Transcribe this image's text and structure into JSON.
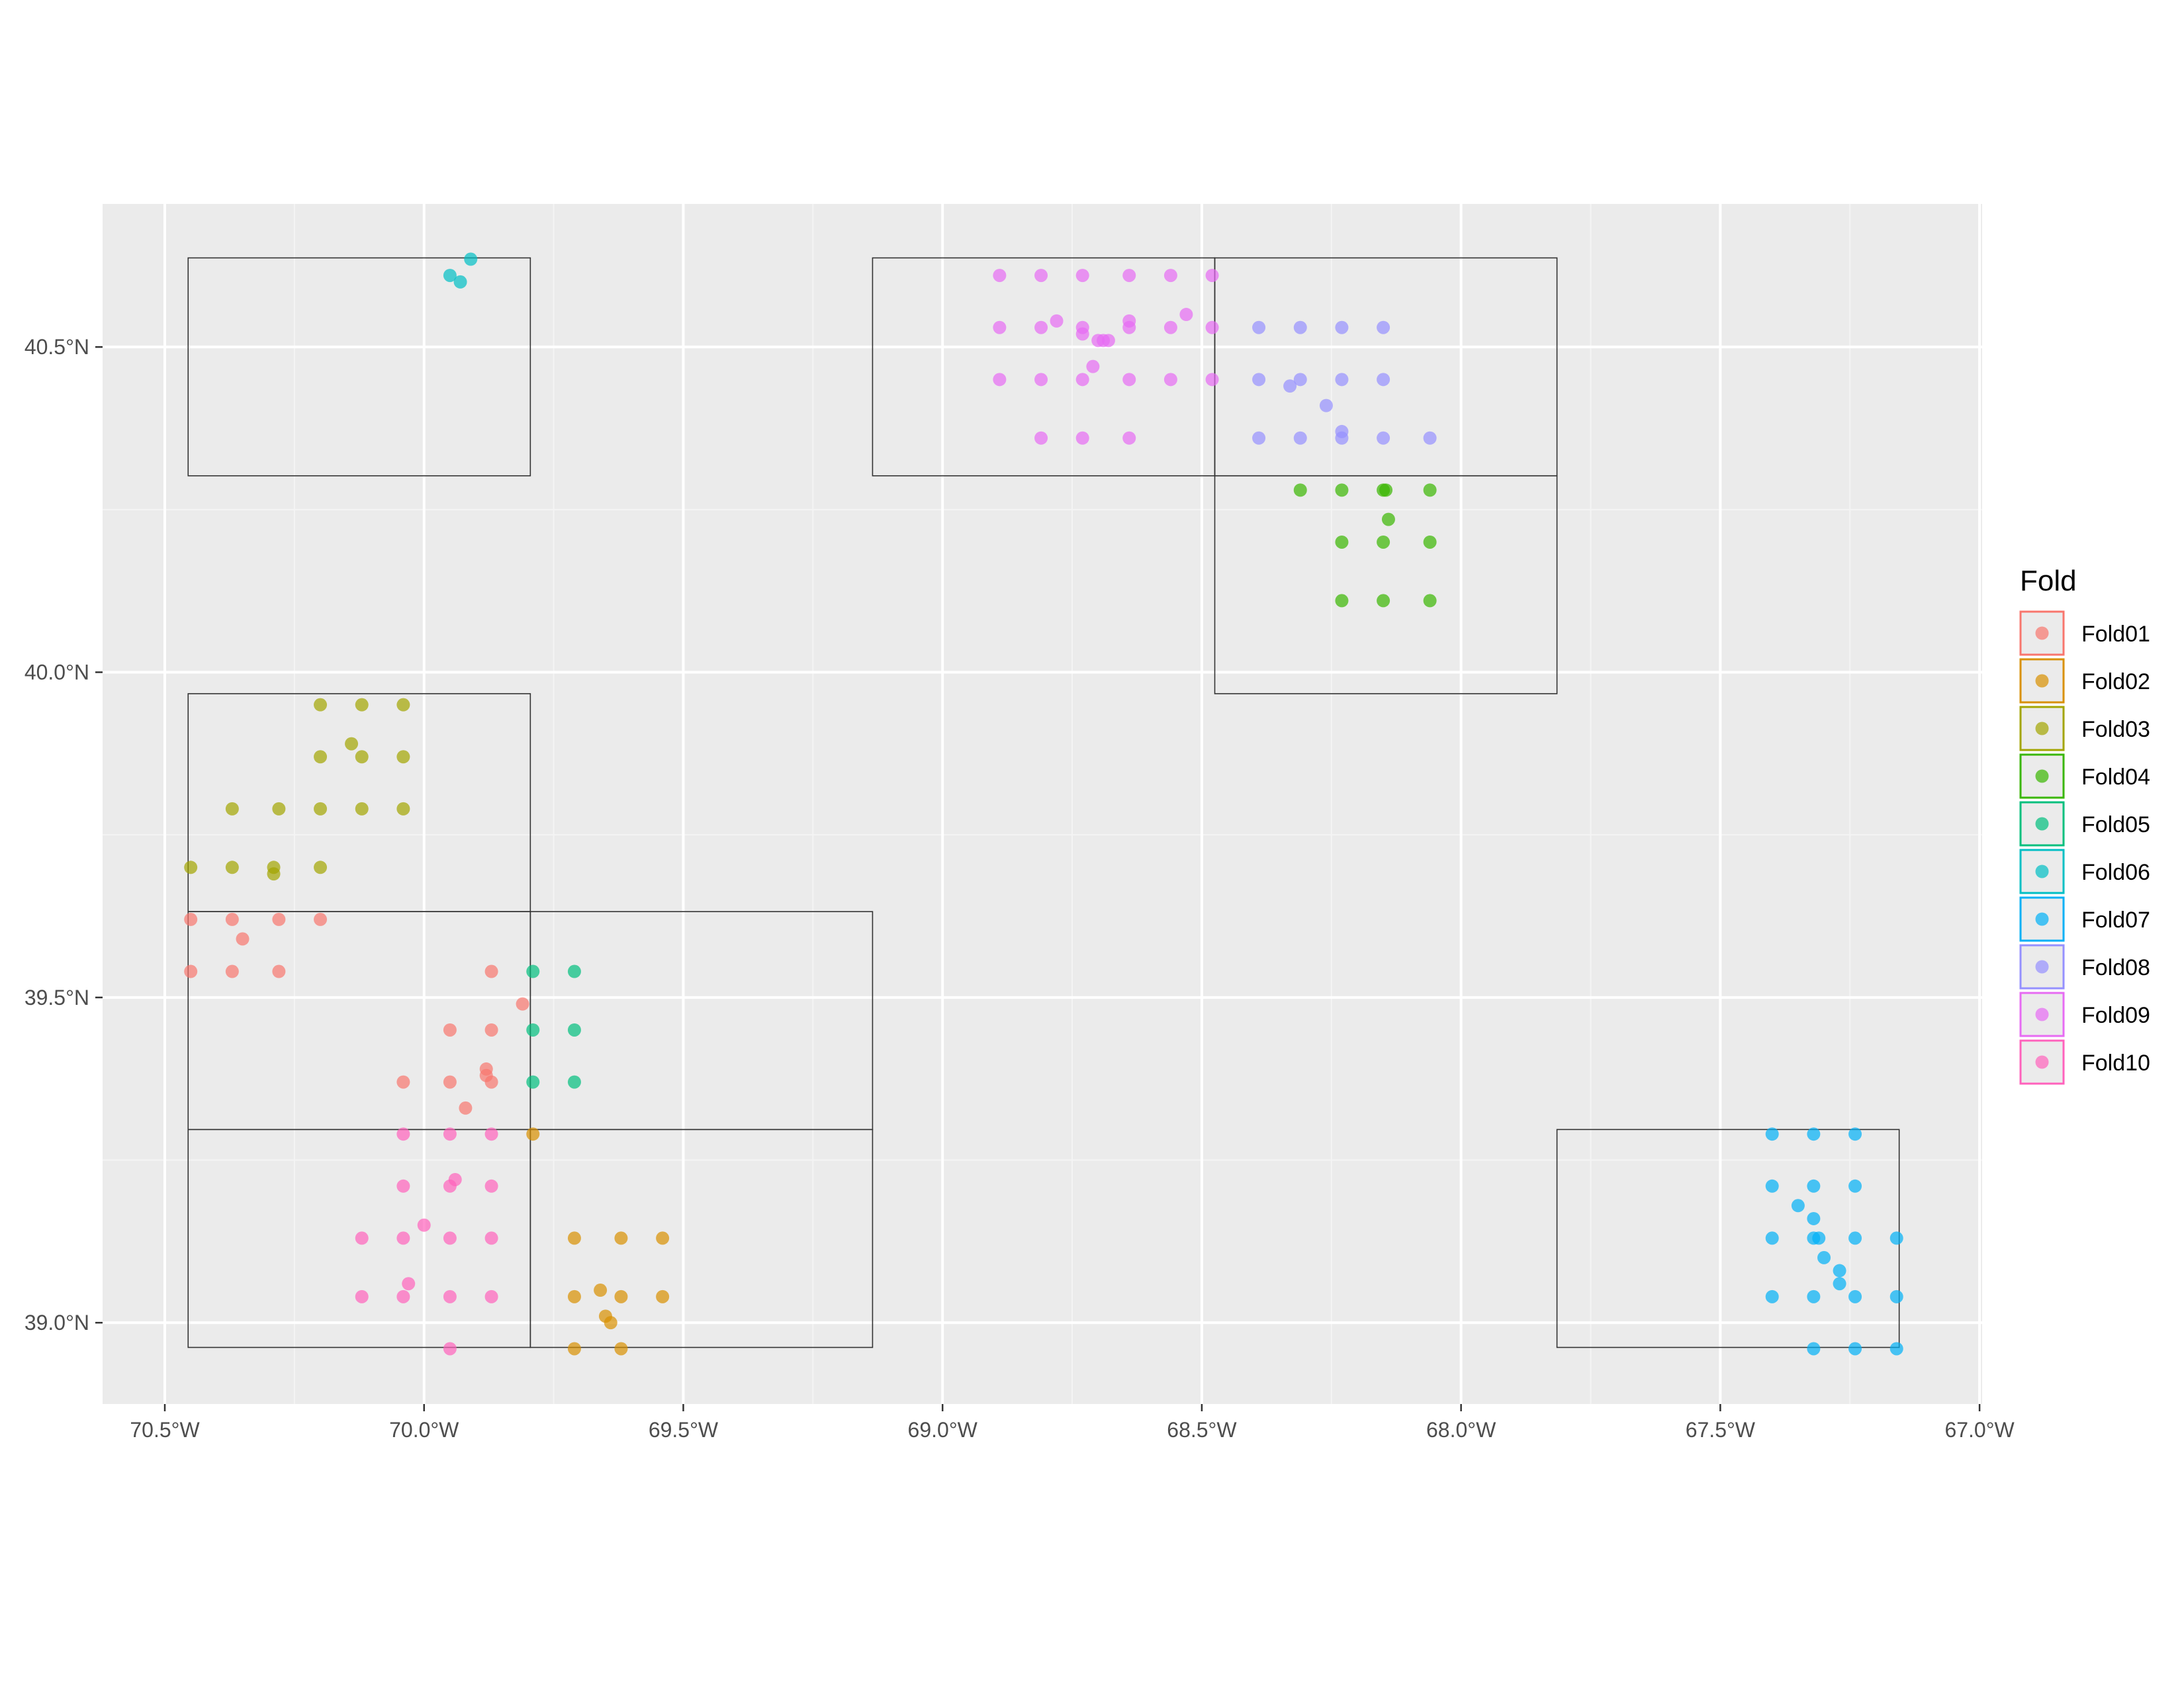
{
  "chart_data": {
    "type": "scatter",
    "title": "",
    "xlabel": "",
    "ylabel": "",
    "xlim": [
      -70.62,
      -66.995
    ],
    "ylim": [
      38.875,
      40.72
    ],
    "grid": true,
    "legend_position": "right",
    "legend_title": "Fold",
    "x_ticks": [
      {
        "value": -70.5,
        "label": "70.5°W"
      },
      {
        "value": -70.0,
        "label": "70.0°W"
      },
      {
        "value": -69.5,
        "label": "69.5°W"
      },
      {
        "value": -69.0,
        "label": "69.0°W"
      },
      {
        "value": -68.5,
        "label": "68.5°W"
      },
      {
        "value": -68.0,
        "label": "68.0°W"
      },
      {
        "value": -67.5,
        "label": "67.5°W"
      },
      {
        "value": -67.0,
        "label": "67.0°W"
      }
    ],
    "y_ticks": [
      {
        "value": 39.0,
        "label": "39.0°N"
      },
      {
        "value": 39.5,
        "label": "39.5°N"
      },
      {
        "value": 40.0,
        "label": "40.0°N"
      },
      {
        "value": 40.5,
        "label": "40.5°N"
      }
    ],
    "blocks": [
      {
        "xmin": -70.455,
        "xmax": -69.795,
        "ymin": 40.302,
        "ymax": 40.637
      },
      {
        "xmin": -70.455,
        "xmax": -69.795,
        "ymin": 39.632,
        "ymax": 39.967
      },
      {
        "xmin": -70.455,
        "xmax": -69.795,
        "ymin": 39.297,
        "ymax": 39.632
      },
      {
        "xmin": -70.455,
        "xmax": -69.795,
        "ymin": 38.962,
        "ymax": 39.297
      },
      {
        "xmin": -69.795,
        "xmax": -69.135,
        "ymin": 39.297,
        "ymax": 39.632
      },
      {
        "xmin": -69.795,
        "xmax": -69.135,
        "ymin": 38.962,
        "ymax": 39.297
      },
      {
        "xmin": -69.135,
        "xmax": -68.475,
        "ymin": 40.302,
        "ymax": 40.637
      },
      {
        "xmin": -68.475,
        "xmax": -67.815,
        "ymin": 40.302,
        "ymax": 40.637
      },
      {
        "xmin": -68.475,
        "xmax": -67.815,
        "ymin": 39.967,
        "ymax": 40.302
      },
      {
        "xmin": -67.815,
        "xmax": -67.155,
        "ymin": 38.962,
        "ymax": 39.297
      }
    ],
    "series": [
      {
        "name": "Fold01",
        "color": "#F8766D",
        "points": [
          [
            -70.45,
            39.62
          ],
          [
            -70.37,
            39.62
          ],
          [
            -70.28,
            39.62
          ],
          [
            -70.2,
            39.62
          ],
          [
            -70.35,
            39.59
          ],
          [
            -70.45,
            39.54
          ],
          [
            -70.37,
            39.54
          ],
          [
            -70.28,
            39.54
          ],
          [
            -69.87,
            39.54
          ],
          [
            -69.81,
            39.49
          ],
          [
            -69.95,
            39.45
          ],
          [
            -69.87,
            39.45
          ],
          [
            -70.04,
            39.37
          ],
          [
            -69.95,
            39.37
          ],
          [
            -69.88,
            39.39
          ],
          [
            -69.87,
            39.37
          ],
          [
            -69.88,
            39.38
          ],
          [
            -69.92,
            39.33
          ]
        ]
      },
      {
        "name": "Fold02",
        "color": "#D89000",
        "points": [
          [
            -69.79,
            39.29
          ],
          [
            -69.71,
            39.13
          ],
          [
            -69.62,
            39.13
          ],
          [
            -69.54,
            39.13
          ],
          [
            -69.71,
            39.04
          ],
          [
            -69.66,
            39.05
          ],
          [
            -69.62,
            39.04
          ],
          [
            -69.54,
            39.04
          ],
          [
            -69.65,
            39.01
          ],
          [
            -69.64,
            39.0
          ],
          [
            -69.71,
            38.96
          ],
          [
            -69.62,
            38.96
          ]
        ]
      },
      {
        "name": "Fold03",
        "color": "#A3A500",
        "points": [
          [
            -70.2,
            39.95
          ],
          [
            -70.12,
            39.95
          ],
          [
            -70.04,
            39.95
          ],
          [
            -70.14,
            39.89
          ],
          [
            -70.2,
            39.87
          ],
          [
            -70.12,
            39.87
          ],
          [
            -70.04,
            39.87
          ],
          [
            -70.37,
            39.79
          ],
          [
            -70.28,
            39.79
          ],
          [
            -70.2,
            39.79
          ],
          [
            -70.12,
            39.79
          ],
          [
            -70.04,
            39.79
          ],
          [
            -70.45,
            39.7
          ],
          [
            -70.37,
            39.7
          ],
          [
            -70.29,
            39.7
          ],
          [
            -70.29,
            39.69
          ],
          [
            -70.2,
            39.7
          ]
        ]
      },
      {
        "name": "Fold04",
        "color": "#39B600",
        "points": [
          [
            -68.31,
            40.28
          ],
          [
            -68.23,
            40.28
          ],
          [
            -68.15,
            40.28
          ],
          [
            -68.145,
            40.28
          ],
          [
            -68.06,
            40.28
          ],
          [
            -68.14,
            40.235
          ],
          [
            -68.23,
            40.2
          ],
          [
            -68.15,
            40.2
          ],
          [
            -68.06,
            40.2
          ],
          [
            -68.23,
            40.11
          ],
          [
            -68.15,
            40.11
          ],
          [
            -68.06,
            40.11
          ]
        ]
      },
      {
        "name": "Fold05",
        "color": "#00BF7D",
        "points": [
          [
            -69.79,
            39.54
          ],
          [
            -69.71,
            39.54
          ],
          [
            -69.79,
            39.45
          ],
          [
            -69.71,
            39.45
          ],
          [
            -69.79,
            39.37
          ],
          [
            -69.71,
            39.37
          ]
        ]
      },
      {
        "name": "Fold06",
        "color": "#00BFC4",
        "points": [
          [
            -69.91,
            40.635
          ],
          [
            -69.95,
            40.61
          ],
          [
            -69.93,
            40.6
          ]
        ]
      },
      {
        "name": "Fold07",
        "color": "#00B0F6",
        "points": [
          [
            -67.4,
            39.29
          ],
          [
            -67.32,
            39.29
          ],
          [
            -67.24,
            39.29
          ],
          [
            -67.4,
            39.21
          ],
          [
            -67.32,
            39.21
          ],
          [
            -67.24,
            39.21
          ],
          [
            -67.35,
            39.18
          ],
          [
            -67.32,
            39.16
          ],
          [
            -67.4,
            39.13
          ],
          [
            -67.32,
            39.13
          ],
          [
            -67.31,
            39.13
          ],
          [
            -67.24,
            39.13
          ],
          [
            -67.16,
            39.13
          ],
          [
            -67.3,
            39.1
          ],
          [
            -67.27,
            39.08
          ],
          [
            -67.27,
            39.06
          ],
          [
            -67.4,
            39.04
          ],
          [
            -67.32,
            39.04
          ],
          [
            -67.24,
            39.04
          ],
          [
            -67.16,
            39.04
          ],
          [
            -67.32,
            38.96
          ],
          [
            -67.24,
            38.96
          ],
          [
            -67.16,
            38.96
          ]
        ]
      },
      {
        "name": "Fold08",
        "color": "#9590FF",
        "points": [
          [
            -68.39,
            40.53
          ],
          [
            -68.31,
            40.53
          ],
          [
            -68.23,
            40.53
          ],
          [
            -68.15,
            40.53
          ],
          [
            -68.39,
            40.45
          ],
          [
            -68.33,
            40.44
          ],
          [
            -68.31,
            40.45
          ],
          [
            -68.23,
            40.45
          ],
          [
            -68.15,
            40.45
          ],
          [
            -68.26,
            40.41
          ],
          [
            -68.39,
            40.36
          ],
          [
            -68.31,
            40.36
          ],
          [
            -68.23,
            40.37
          ],
          [
            -68.23,
            40.36
          ],
          [
            -68.15,
            40.36
          ],
          [
            -68.06,
            40.36
          ]
        ]
      },
      {
        "name": "Fold09",
        "color": "#E76BF3",
        "points": [
          [
            -68.89,
            40.61
          ],
          [
            -68.81,
            40.61
          ],
          [
            -68.73,
            40.61
          ],
          [
            -68.64,
            40.61
          ],
          [
            -68.56,
            40.61
          ],
          [
            -68.48,
            40.61
          ],
          [
            -68.89,
            40.53
          ],
          [
            -68.81,
            40.53
          ],
          [
            -68.78,
            40.54
          ],
          [
            -68.73,
            40.53
          ],
          [
            -68.73,
            40.52
          ],
          [
            -68.7,
            40.51
          ],
          [
            -68.69,
            40.51
          ],
          [
            -68.68,
            40.51
          ],
          [
            -68.64,
            40.53
          ],
          [
            -68.64,
            40.54
          ],
          [
            -68.56,
            40.53
          ],
          [
            -68.53,
            40.55
          ],
          [
            -68.48,
            40.53
          ],
          [
            -68.71,
            40.47
          ],
          [
            -68.89,
            40.45
          ],
          [
            -68.81,
            40.45
          ],
          [
            -68.73,
            40.45
          ],
          [
            -68.64,
            40.45
          ],
          [
            -68.56,
            40.45
          ],
          [
            -68.48,
            40.45
          ],
          [
            -68.81,
            40.36
          ],
          [
            -68.73,
            40.36
          ],
          [
            -68.64,
            40.36
          ]
        ]
      },
      {
        "name": "Fold10",
        "color": "#FF62BC",
        "points": [
          [
            -70.04,
            39.29
          ],
          [
            -69.95,
            39.29
          ],
          [
            -69.87,
            39.29
          ],
          [
            -70.04,
            39.21
          ],
          [
            -69.95,
            39.21
          ],
          [
            -69.94,
            39.22
          ],
          [
            -69.87,
            39.21
          ],
          [
            -70.12,
            39.13
          ],
          [
            -70.04,
            39.13
          ],
          [
            -70.0,
            39.15
          ],
          [
            -69.95,
            39.13
          ],
          [
            -69.87,
            39.13
          ],
          [
            -70.12,
            39.04
          ],
          [
            -70.04,
            39.04
          ],
          [
            -70.03,
            39.06
          ],
          [
            -69.95,
            39.04
          ],
          [
            -69.87,
            39.04
          ],
          [
            -69.95,
            38.96
          ]
        ]
      }
    ]
  }
}
